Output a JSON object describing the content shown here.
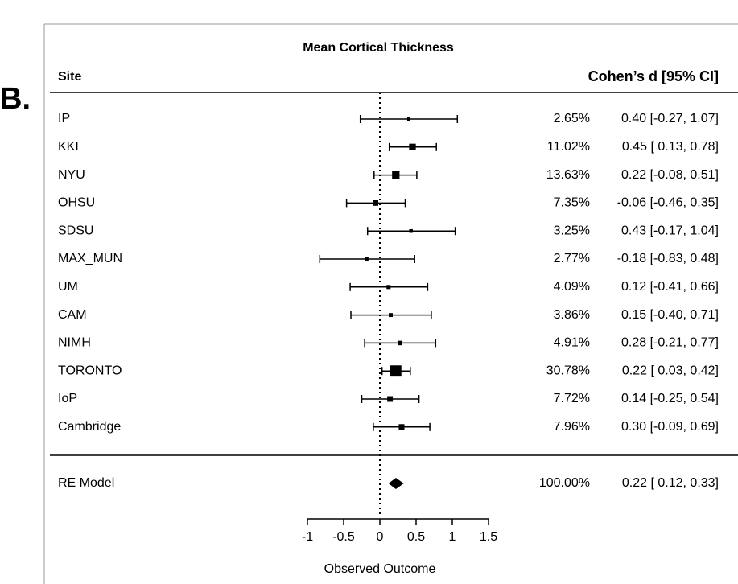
{
  "chart_data": {
    "type": "forest",
    "panel_label": "B.",
    "title": "Mean Cortical Thickness",
    "label_header": "Site",
    "value_header": "Cohen’s d [95% CI]",
    "x_label": "Observed Outcome",
    "categories": [
      "IP",
      "KKI",
      "NYU",
      "OHSU",
      "SDSU",
      "MAX_MUN",
      "UM",
      "CAM",
      "NIMH",
      "TORONTO",
      "IoP",
      "Cambridge"
    ],
    "estimates": [
      0.4,
      0.45,
      0.22,
      -0.06,
      0.43,
      -0.18,
      0.12,
      0.15,
      0.28,
      0.22,
      0.14,
      0.3
    ],
    "lower": [
      -0.27,
      0.13,
      -0.08,
      -0.46,
      -0.17,
      -0.83,
      -0.41,
      -0.4,
      -0.21,
      0.03,
      -0.25,
      -0.09
    ],
    "upper": [
      1.07,
      0.78,
      0.51,
      0.35,
      1.04,
      0.48,
      0.66,
      0.71,
      0.77,
      0.42,
      0.54,
      0.69
    ],
    "weights": [
      2.65,
      11.02,
      13.63,
      7.35,
      3.25,
      2.77,
      4.09,
      3.86,
      4.91,
      30.78,
      7.72,
      7.96
    ],
    "weight_labels": [
      "2.65%",
      "11.02%",
      "13.63%",
      "7.35%",
      "3.25%",
      "2.77%",
      "4.09%",
      "3.86%",
      "4.91%",
      "30.78%",
      "7.72%",
      "7.96%"
    ],
    "ci_labels": [
      "0.40 [-0.27, 1.07]",
      "0.45 [ 0.13, 0.78]",
      "0.22 [-0.08, 0.51]",
      "-0.06 [-0.46, 0.35]",
      "0.43 [-0.17, 1.04]",
      "-0.18 [-0.83, 0.48]",
      "0.12 [-0.41, 0.66]",
      "0.15 [-0.40, 0.71]",
      "0.28 [-0.21, 0.77]",
      "0.22 [ 0.03, 0.42]",
      "0.14 [-0.25, 0.54]",
      "0.30 [-0.09, 0.69]"
    ],
    "summary": {
      "name": "RE Model",
      "estimate": 0.22,
      "lower": 0.12,
      "upper": 0.33,
      "weight": 100.0,
      "weight_label": "100.00%",
      "ci_label": "0.22 [ 0.12, 0.33]"
    },
    "xlim": [
      -1,
      1.5
    ],
    "xticks": [
      -1,
      -0.5,
      0,
      0.5,
      1,
      1.5
    ],
    "reference_line": 0,
    "color": "#000000"
  }
}
